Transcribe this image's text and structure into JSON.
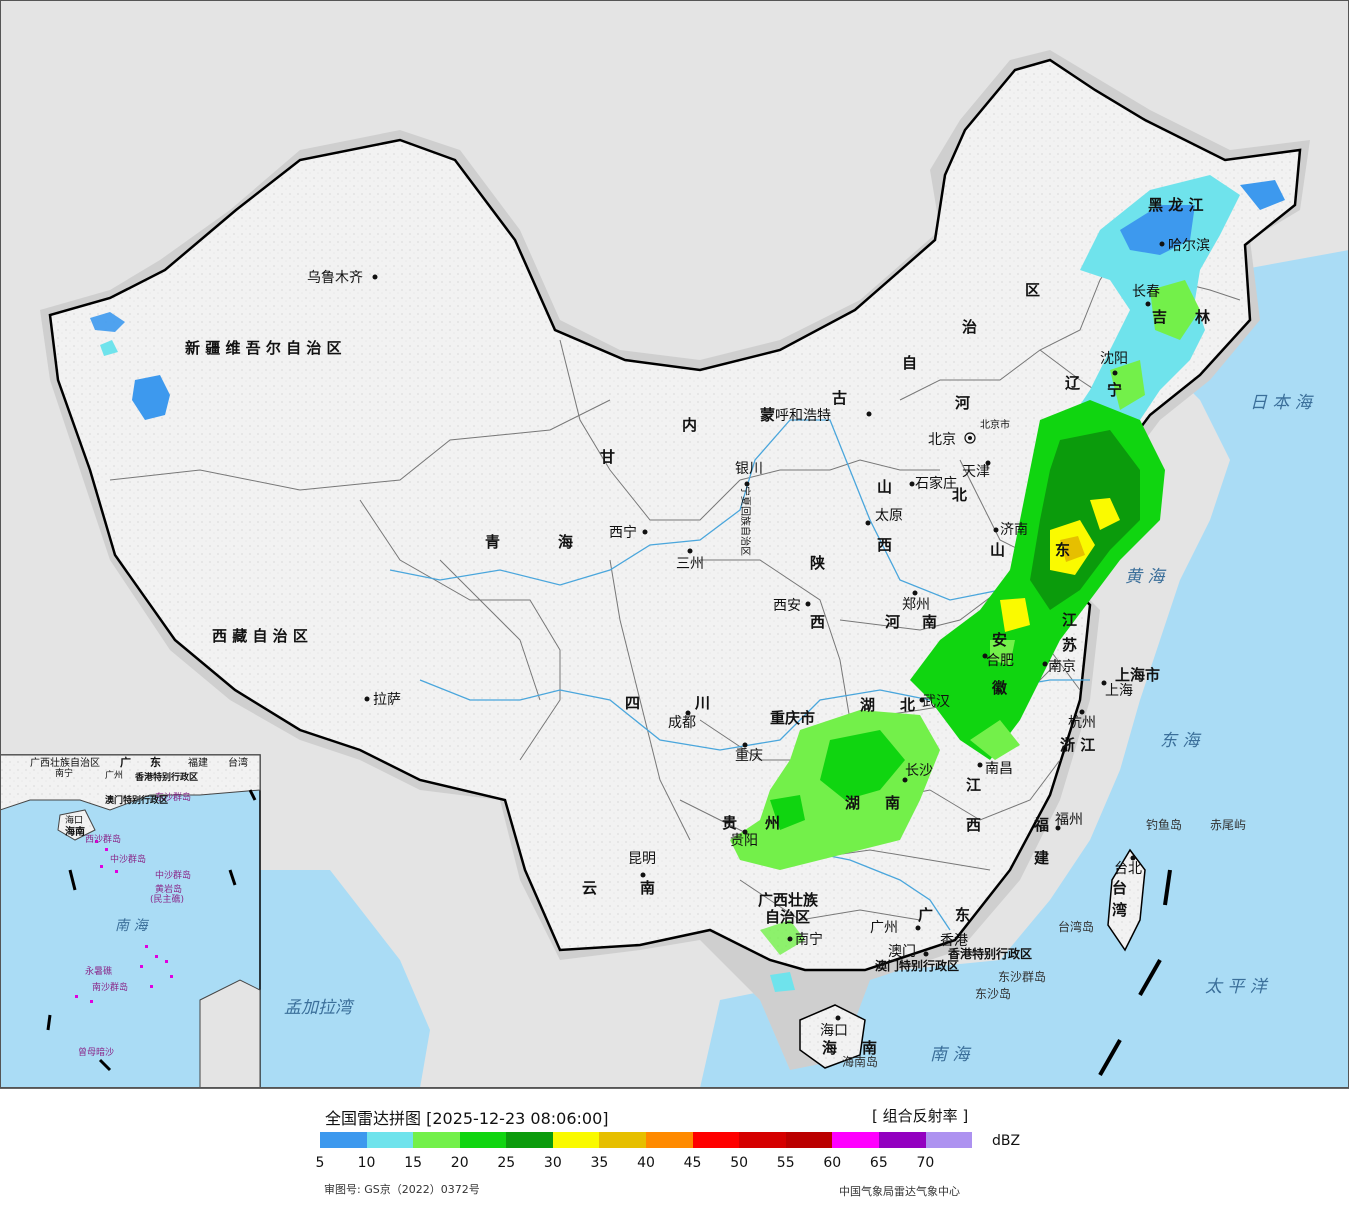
{
  "title": "全国雷达拼图 [2025-12-23 08:06:00]",
  "product": "[ 组合反射率 ]",
  "unit": "dBZ",
  "approval_number": "审图号: GS京（2022）0372号",
  "agency": "中国气象局雷达气象中心",
  "colorbar": {
    "colors": [
      "#3d99ee",
      "#6fe3ec",
      "#73f04a",
      "#10d510",
      "#0b9b0c",
      "#fafa00",
      "#e6bf00",
      "#ff8a00",
      "#ff0000",
      "#d50000",
      "#bb0000",
      "#ff00ff",
      "#9300c0",
      "#ad92f0"
    ],
    "ticks": [
      "5",
      "10",
      "15",
      "20",
      "25",
      "30",
      "35",
      "40",
      "45",
      "50",
      "55",
      "60",
      "65",
      "70"
    ]
  },
  "labels": {
    "provinces": {
      "xinjiang": "新 疆 维 吾 尔 自 治 区",
      "xizang": "西 藏 自 治 区",
      "qinghai1": "青",
      "qinghai2": "海",
      "gansu": "甘",
      "sichuan1": "四",
      "sichuan2": "川",
      "yunnan1": "云",
      "yunnan2": "南",
      "guizhou1": "贵",
      "guizhou2": "州",
      "guangxi1": "广西壮族",
      "guangxi2": "自治区",
      "guangdong1": "广",
      "guangdong2": "东",
      "hainan1": "海",
      "hainan2": "南",
      "hunan1": "湖",
      "hunan2": "南",
      "hubei1": "湖",
      "hubei2": "北",
      "jiangxi1": "江",
      "jiangxi2": "西",
      "fujian1": "福",
      "fujian2": "建",
      "zhejiang": "浙 江",
      "jiangsu1": "江",
      "jiangsu2": "苏",
      "anhui1": "安",
      "anhui2": "徽",
      "henan1": "河",
      "henan2": "南",
      "shaanxi1": "陕",
      "shaanxi2": "西",
      "shanxi1": "山",
      "shanxi2": "西",
      "shandong1": "山",
      "shandong2": "东",
      "hebei1": "河",
      "hebei2": "北",
      "neimenggu1": "内",
      "neimenggu2": "蒙",
      "neimenggu3": "古",
      "neimenggu4": "自",
      "neimenggu5": "治",
      "neimenggu6": "区",
      "liaoning1": "辽",
      "liaoning2": "宁",
      "jilin1": "吉",
      "jilin2": "林",
      "heilongjiang": "黑 龙 江",
      "ningxia": "宁夏回族自治区",
      "chongqing": "重庆市",
      "shanghai": "上海市",
      "taiwan1": "台",
      "taiwan2": "湾",
      "hongkong": "香港特别行政区",
      "macau": "澳门特别行政区"
    },
    "cities": {
      "urumqi": "乌鲁木齐",
      "lhasa": "拉萨",
      "xining": "西宁",
      "lanzhou": "三州",
      "yinchuan": "银川",
      "hohhot": "呼和浩特",
      "beijing": "北京",
      "beijing_shi": "北京市",
      "tianjin": "天津",
      "tianjin_shi": "天津",
      "shijiazhuang": "石家庄",
      "taiyuan": "太原",
      "xian": "西安",
      "zhengzhou": "郑州",
      "jinan": "济南",
      "chengdu": "成都",
      "chongqing": "重庆",
      "guiyang": "贵阳",
      "kunming": "昆明",
      "nanning": "南宁",
      "guangzhou": "广州",
      "hongkong": "香港",
      "macau": "澳门",
      "haikou": "海口",
      "wuhan": "武汉",
      "changsha": "长沙",
      "nanchang": "南昌",
      "fuzhou": "福州",
      "hangzhou": "杭州",
      "nanjing": "南京",
      "hefei": "合肥",
      "shanghai": "上海",
      "taibei": "台北",
      "shenyang": "沈阳",
      "changchun": "长春",
      "harbin": "哈尔滨"
    },
    "seas": {
      "japan_sea": "日 本 海",
      "yellow_sea": "黄 海",
      "east_sea": "东 海",
      "pacific": "太 平 洋",
      "south_sea": "南 海",
      "bengal": "孟加拉湾",
      "inset_south_sea": "南 海"
    },
    "islands": {
      "diaoyu": "钓鱼岛",
      "chiwei": "赤尾屿",
      "taiwan_island": "台湾岛",
      "dongsha_qundao": "东沙群岛",
      "dongsha_dao": "东沙岛",
      "hainan_dao": "海南岛",
      "inset_xisha": "西沙群岛",
      "inset_zhongsha": "中沙群岛",
      "inset_huangyan": "黄岩岛",
      "inset_minzhu": "(民主礁)",
      "inset_nansha": "南沙群岛",
      "inset_yongshu": "永暑礁",
      "inset_zengmu": "曾母暗沙",
      "inset_dongsha": "东沙群岛"
    },
    "inset": {
      "guangxi": "广西壮族自治区",
      "guangdong1": "广",
      "guangdong2": "东",
      "fujian": "福建",
      "taiwan": "台湾",
      "nanning": "南宁",
      "guangzhou": "广州",
      "hk": "香港特别行政区",
      "macau": "澳门特别行政区",
      "haikou": "海口",
      "hainan": "海南"
    }
  }
}
